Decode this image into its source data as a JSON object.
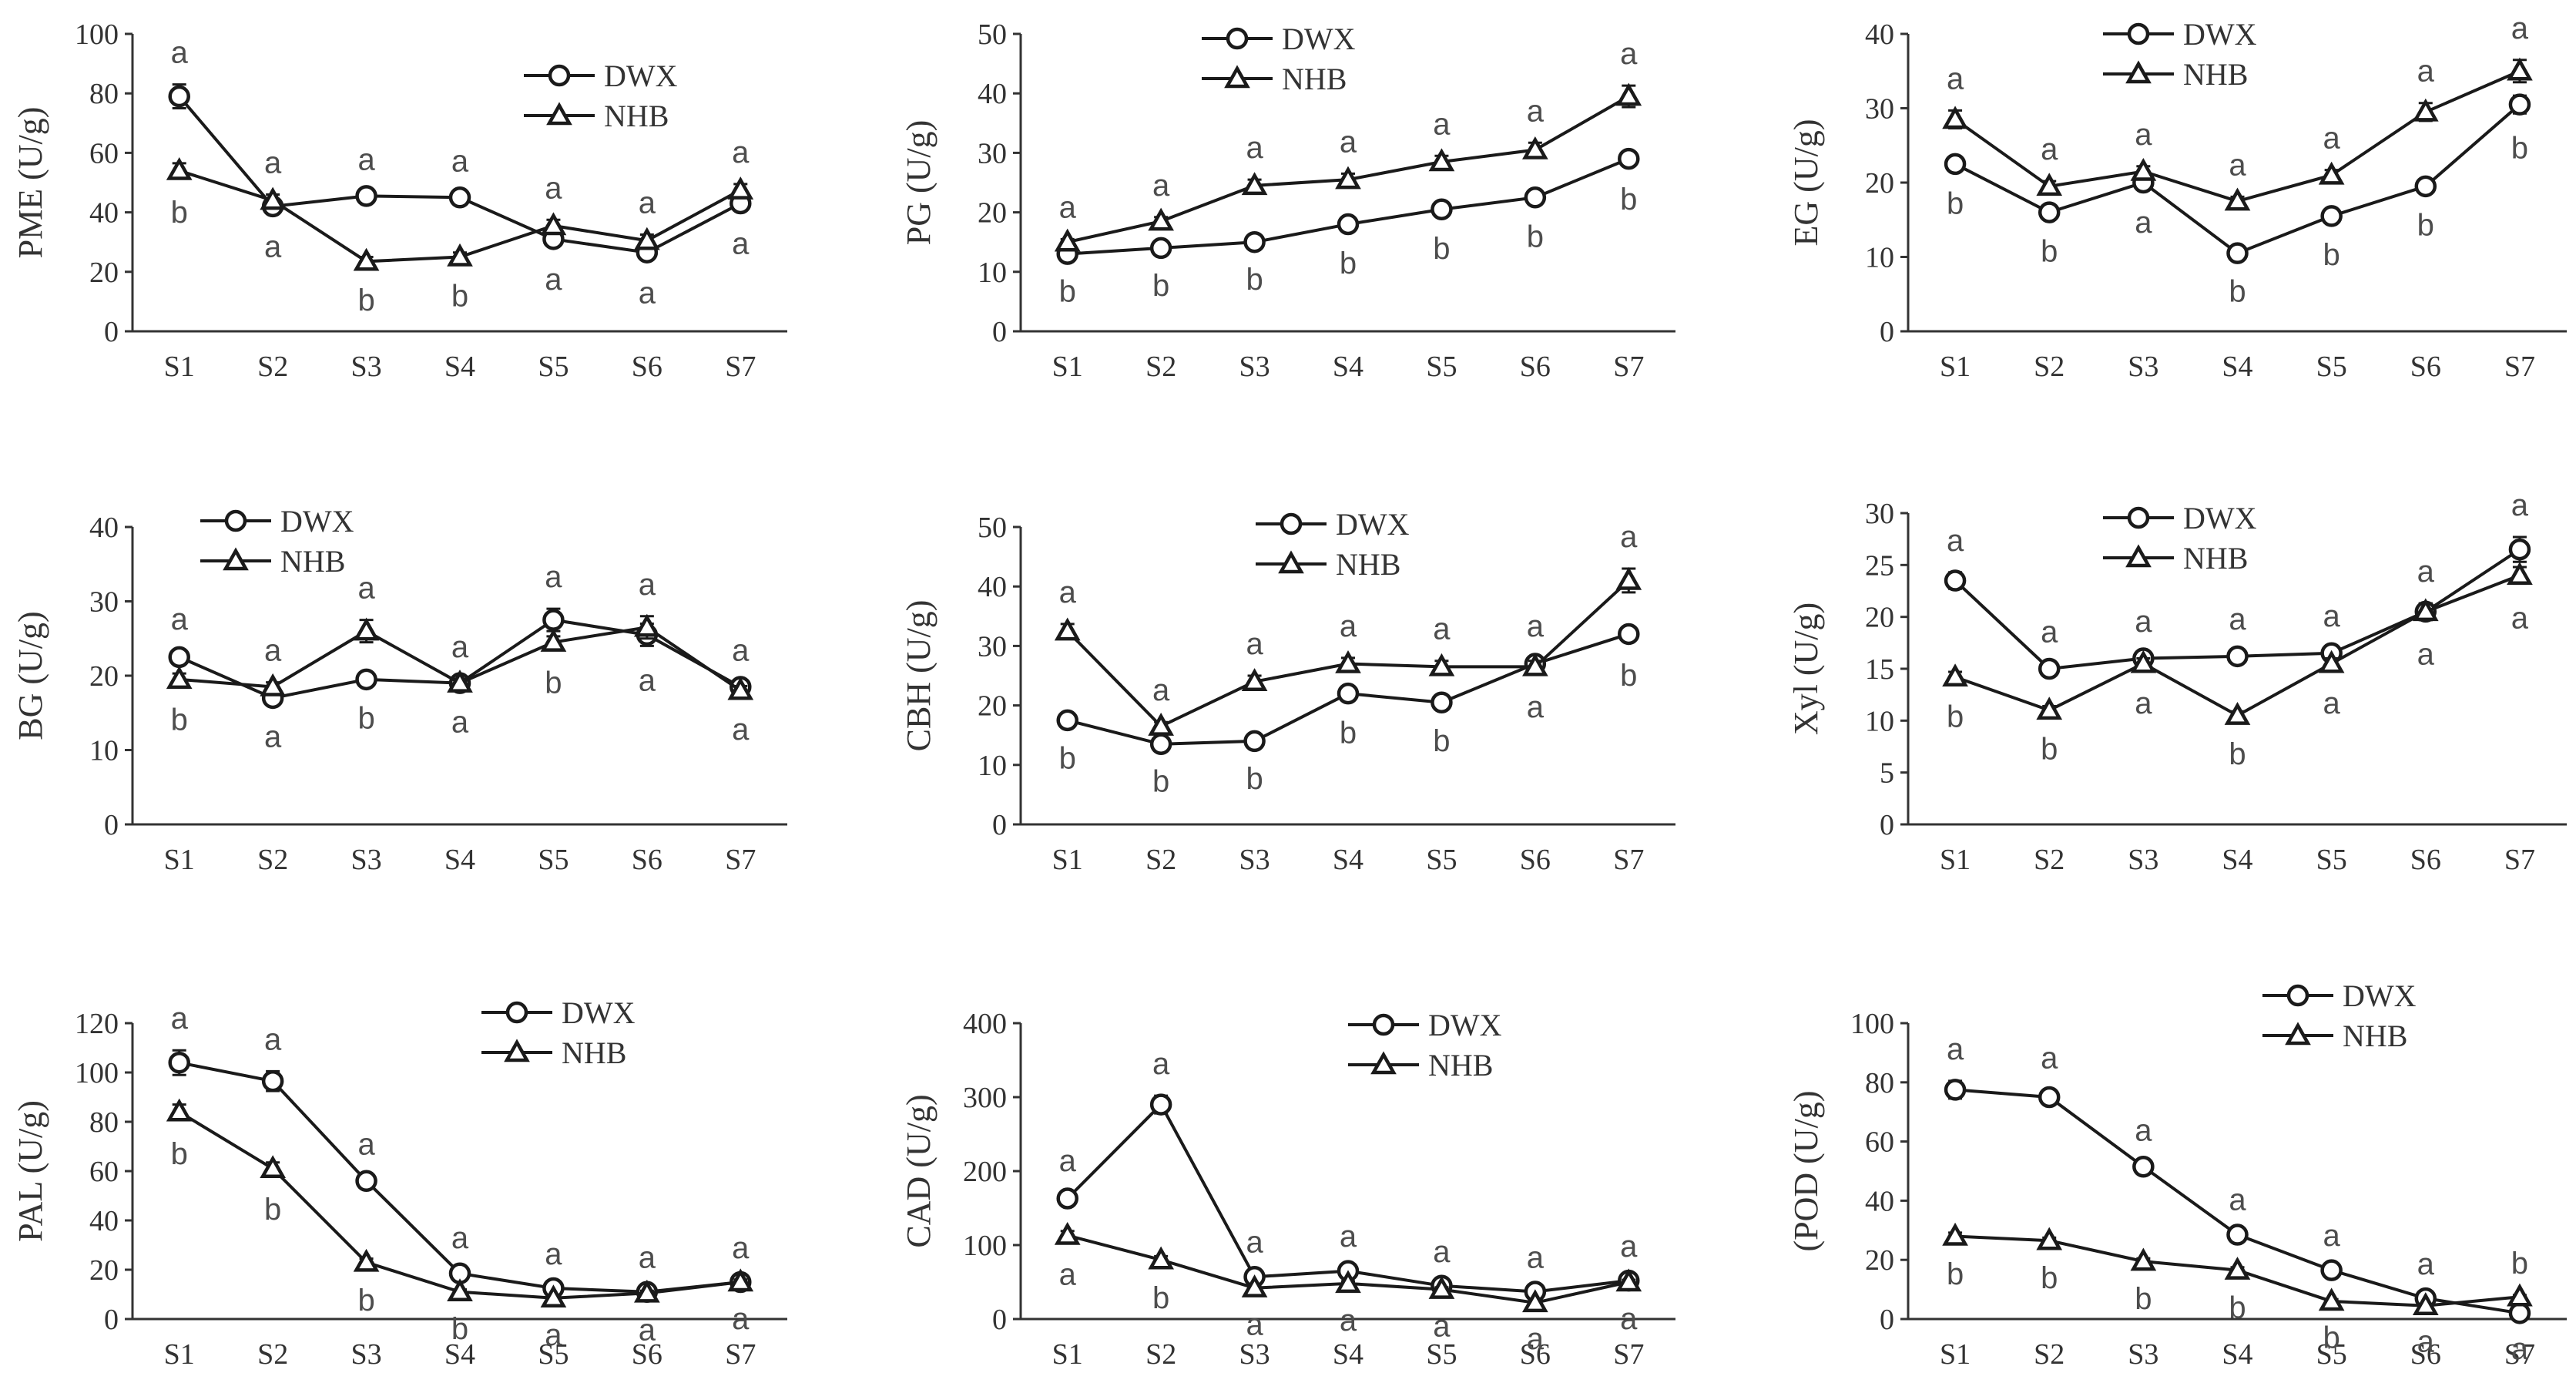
{
  "chart_data": [
    {
      "type": "line",
      "ylabel": "PME (U/g)",
      "ylim": [
        0,
        100
      ],
      "yticks": [
        0,
        20,
        40,
        60,
        80,
        100
      ],
      "categories": [
        "S1",
        "S2",
        "S3",
        "S4",
        "S5",
        "S6",
        "S7"
      ],
      "series": [
        {
          "name": "DWX",
          "marker": "circle",
          "values": [
            79,
            42,
            45.5,
            45,
            31,
            26.5,
            43
          ],
          "errors": [
            4,
            2,
            1.5,
            1.5,
            2,
            2,
            2
          ],
          "letters": [
            "a",
            "a",
            "a",
            "a",
            "a",
            "a",
            "a"
          ]
        },
        {
          "name": "NHB",
          "marker": "triangle",
          "values": [
            54,
            44,
            23.5,
            25,
            35.5,
            30.5,
            47.5
          ],
          "errors": [
            2.5,
            2,
            1.5,
            1.5,
            2,
            2,
            2
          ],
          "letters": [
            "b",
            "a",
            "b",
            "b",
            "a",
            "a",
            "a"
          ]
        }
      ],
      "legend_position": "top-right"
    },
    {
      "type": "line",
      "ylabel": "PG (U/g)",
      "ylim": [
        0,
        50
      ],
      "yticks": [
        0,
        10,
        20,
        30,
        40,
        50
      ],
      "categories": [
        "S1",
        "S2",
        "S3",
        "S4",
        "S5",
        "S6",
        "S7"
      ],
      "series": [
        {
          "name": "DWX",
          "marker": "circle",
          "values": [
            13,
            14,
            15,
            18,
            20.5,
            22.5,
            29
          ],
          "errors": [
            0.5,
            0.5,
            0.5,
            0.8,
            0.8,
            0.8,
            1
          ],
          "letters": [
            "b",
            "b",
            "b",
            "b",
            "b",
            "b",
            "b"
          ]
        },
        {
          "name": "NHB",
          "marker": "triangle",
          "values": [
            15,
            18.5,
            24.5,
            25.5,
            28.5,
            30.5,
            39.5
          ],
          "errors": [
            0.5,
            0.7,
            1,
            1,
            1,
            1.2,
            1.8
          ],
          "letters": [
            "a",
            "a",
            "a",
            "a",
            "a",
            "a",
            "a"
          ]
        }
      ],
      "legend_position": "top-center"
    },
    {
      "type": "line",
      "ylabel": "EG (U/g)",
      "ylim": [
        0,
        40
      ],
      "yticks": [
        0,
        10,
        20,
        30,
        40
      ],
      "categories": [
        "S1",
        "S2",
        "S3",
        "S4",
        "S5",
        "S6",
        "S7"
      ],
      "series": [
        {
          "name": "DWX",
          "marker": "circle",
          "values": [
            22.5,
            16,
            20,
            10.5,
            15.5,
            19.5,
            30.5
          ],
          "errors": [
            0.7,
            0.6,
            0.7,
            0.5,
            0.6,
            0.6,
            1.2
          ],
          "letters": [
            "b",
            "b",
            "a",
            "b",
            "b",
            "b",
            "b"
          ]
        },
        {
          "name": "NHB",
          "marker": "triangle",
          "values": [
            28.5,
            19.5,
            21.5,
            17.5,
            21,
            29.5,
            35
          ],
          "errors": [
            1.2,
            0.7,
            0.7,
            0.6,
            0.7,
            1.2,
            1.5
          ],
          "letters": [
            "a",
            "a",
            "a",
            "a",
            "a",
            "a",
            "a"
          ]
        }
      ],
      "legend_position": "top-center"
    },
    {
      "type": "line",
      "ylabel": "BG (U/g)",
      "ylim": [
        0,
        40
      ],
      "yticks": [
        0,
        10,
        20,
        30,
        40
      ],
      "categories": [
        "S1",
        "S2",
        "S3",
        "S4",
        "S5",
        "S6",
        "S7"
      ],
      "series": [
        {
          "name": "DWX",
          "marker": "circle",
          "values": [
            22.5,
            17,
            19.5,
            19,
            27.5,
            25.5,
            18.5
          ],
          "errors": [
            0.8,
            0.6,
            0.6,
            0.6,
            1.5,
            1.5,
            0.6
          ],
          "letters": [
            "a",
            "a",
            "b",
            "a",
            "a",
            "a",
            "a"
          ]
        },
        {
          "name": "NHB",
          "marker": "triangle",
          "values": [
            19.5,
            18.5,
            26,
            19,
            24.5,
            26.5,
            18
          ],
          "errors": [
            0.8,
            0.6,
            1.5,
            0.6,
            0.8,
            1.5,
            0.6
          ],
          "letters": [
            "b",
            "a",
            "a",
            "a",
            "b",
            "a",
            "a"
          ]
        }
      ],
      "legend_position": "top-left"
    },
    {
      "type": "line",
      "ylabel": "CBH (U/g)",
      "ylim": [
        0,
        50
      ],
      "yticks": [
        0,
        10,
        20,
        30,
        40,
        50
      ],
      "categories": [
        "S1",
        "S2",
        "S3",
        "S4",
        "S5",
        "S6",
        "S7"
      ],
      "series": [
        {
          "name": "DWX",
          "marker": "circle",
          "values": [
            17.5,
            13.5,
            14,
            22,
            20.5,
            27,
            32
          ],
          "errors": [
            0.6,
            0.5,
            0.5,
            0.8,
            0.7,
            1,
            1.2
          ],
          "letters": [
            "b",
            "b",
            "b",
            "b",
            "b",
            "a",
            "b"
          ]
        },
        {
          "name": "NHB",
          "marker": "triangle",
          "values": [
            32.5,
            16.5,
            24,
            27,
            26.5,
            26.5,
            41
          ],
          "errors": [
            1.2,
            0.7,
            1,
            1,
            1,
            1,
            2
          ],
          "letters": [
            "a",
            "a",
            "a",
            "a",
            "a",
            "a",
            "a"
          ]
        }
      ],
      "legend_position": "top-center"
    },
    {
      "type": "line",
      "ylabel": "Xyl (U/g)",
      "ylim": [
        0,
        30
      ],
      "yticks": [
        0,
        5,
        10,
        15,
        20,
        25,
        30
      ],
      "categories": [
        "S1",
        "S2",
        "S3",
        "S4",
        "S5",
        "S6",
        "S7"
      ],
      "series": [
        {
          "name": "DWX",
          "marker": "circle",
          "values": [
            23.5,
            15,
            16,
            16.2,
            16.5,
            20.5,
            26.5
          ],
          "errors": [
            0.8,
            0.5,
            0.5,
            0.5,
            0.5,
            0.8,
            1.2
          ],
          "letters": [
            "a",
            "a",
            "a",
            "a",
            "a",
            "a",
            "a"
          ]
        },
        {
          "name": "NHB",
          "marker": "triangle",
          "values": [
            14.2,
            11,
            15.5,
            10.5,
            15.5,
            20.5,
            24
          ],
          "errors": [
            0.5,
            0.4,
            0.5,
            0.4,
            0.5,
            0.8,
            0.8
          ],
          "letters": [
            "b",
            "b",
            "a",
            "b",
            "a",
            "a",
            "a"
          ]
        }
      ],
      "legend_position": "top-center"
    },
    {
      "type": "line",
      "ylabel": "PAL (U/g)",
      "ylim": [
        0,
        120
      ],
      "yticks": [
        0,
        20,
        40,
        60,
        80,
        100,
        120
      ],
      "categories": [
        "S1",
        "S2",
        "S3",
        "S4",
        "S5",
        "S6",
        "S7"
      ],
      "series": [
        {
          "name": "DWX",
          "marker": "circle",
          "values": [
            104,
            96.5,
            56,
            18.5,
            12.5,
            11,
            15
          ],
          "errors": [
            5,
            4,
            2,
            1.5,
            1,
            1,
            1
          ],
          "letters": [
            "a",
            "a",
            "a",
            "a",
            "a",
            "a",
            "a"
          ]
        },
        {
          "name": "NHB",
          "marker": "triangle",
          "values": [
            84,
            61,
            23,
            11,
            8.5,
            10.5,
            15
          ],
          "errors": [
            3,
            2.5,
            1.5,
            1,
            1,
            1,
            1
          ],
          "letters": [
            "b",
            "b",
            "b",
            "b",
            "a",
            "a",
            "a"
          ]
        }
      ],
      "legend_position": "top-center"
    },
    {
      "type": "line",
      "ylabel": "CAD (U/g)",
      "ylim": [
        0,
        400
      ],
      "yticks": [
        0,
        100,
        200,
        300,
        400
      ],
      "categories": [
        "S1",
        "S2",
        "S3",
        "S4",
        "S5",
        "S6",
        "S7"
      ],
      "series": [
        {
          "name": "DWX",
          "marker": "circle",
          "values": [
            163,
            290,
            57,
            65,
            45,
            37,
            52
          ],
          "errors": [
            8,
            12,
            4,
            4,
            3,
            3,
            3
          ],
          "letters": [
            "a",
            "a",
            "a",
            "a",
            "a",
            "a",
            "a"
          ]
        },
        {
          "name": "NHB",
          "marker": "triangle",
          "values": [
            113,
            80,
            42,
            48,
            40,
            22,
            50
          ],
          "errors": [
            6,
            5,
            3,
            3,
            3,
            2,
            3
          ],
          "letters": [
            "a",
            "b",
            "a",
            "a",
            "a",
            "a",
            "a"
          ]
        }
      ],
      "legend_position": "top-center"
    },
    {
      "type": "line",
      "ylabel": "(POD (U/g)",
      "ylim": [
        0,
        100
      ],
      "yticks": [
        0,
        20,
        40,
        60,
        80,
        100
      ],
      "categories": [
        "S1",
        "S2",
        "S3",
        "S4",
        "S5",
        "S6",
        "S7"
      ],
      "series": [
        {
          "name": "DWX",
          "marker": "circle",
          "values": [
            77.5,
            75,
            51.5,
            28.5,
            16.5,
            7,
            2
          ],
          "errors": [
            3,
            2.5,
            1.5,
            1,
            1,
            0.8,
            0.5
          ],
          "letters": [
            "a",
            "a",
            "a",
            "a",
            "a",
            "a",
            "a"
          ]
        },
        {
          "name": "NHB",
          "marker": "triangle",
          "values": [
            28,
            26.5,
            19.5,
            16.5,
            6,
            4.5,
            7.5
          ],
          "errors": [
            1.2,
            1,
            1,
            1,
            0.7,
            0.5,
            0.6
          ],
          "letters": [
            "b",
            "b",
            "b",
            "b",
            "b",
            "a",
            "b"
          ]
        }
      ],
      "legend_position": "top-right"
    }
  ]
}
